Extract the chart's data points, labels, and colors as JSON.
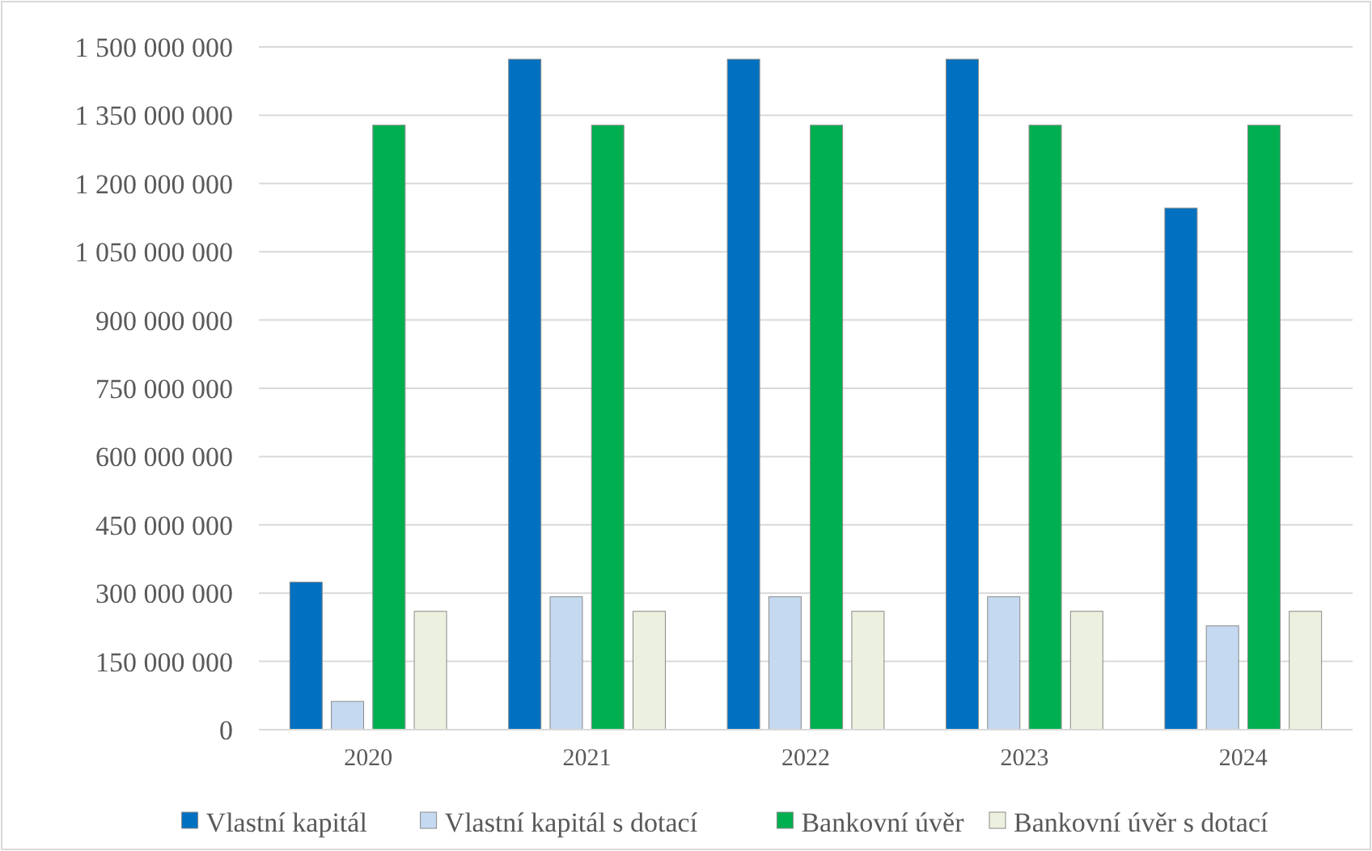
{
  "chart_data": {
    "type": "bar",
    "categories": [
      "2020",
      "2021",
      "2022",
      "2023",
      "2024"
    ],
    "series": [
      {
        "name": "Vlastní kapitál",
        "color": "#0070c0",
        "values": [
          324000000,
          1473000000,
          1473000000,
          1473000000,
          1146000000
        ]
      },
      {
        "name": "Vlastní kapitál s dotací",
        "color": "#c5d9f1",
        "values": [
          62000000,
          292000000,
          292000000,
          292000000,
          228000000
        ]
      },
      {
        "name": "Bankovní úvěr",
        "color": "#00b050",
        "values": [
          1328000000,
          1328000000,
          1328000000,
          1328000000,
          1328000000
        ]
      },
      {
        "name": "Bankovní úvěr s dotací",
        "color": "#ebf1de",
        "values": [
          260000000,
          260000000,
          260000000,
          260000000,
          260000000
        ]
      }
    ],
    "ylim": [
      0,
      1500000000
    ],
    "yticks": [
      {
        "value": 0,
        "label": "0"
      },
      {
        "value": 150000000,
        "label": "150 000 000"
      },
      {
        "value": 300000000,
        "label": "300 000 000"
      },
      {
        "value": 450000000,
        "label": "450 000 000"
      },
      {
        "value": 600000000,
        "label": "600 000 000"
      },
      {
        "value": 750000000,
        "label": "750 000 000"
      },
      {
        "value": 900000000,
        "label": "900 000 000"
      },
      {
        "value": 1050000000,
        "label": "1 050 000 000"
      },
      {
        "value": 1200000000,
        "label": "1 200 000 000"
      },
      {
        "value": 1350000000,
        "label": "1 350 000 000"
      },
      {
        "value": 1500000000,
        "label": "1 500 000 000"
      }
    ],
    "grid": "y",
    "legend": "bottom"
  }
}
